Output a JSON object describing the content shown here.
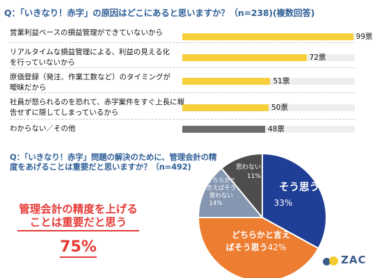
{
  "question1": "Q：「いきなり！赤字」の原因はどこにあると思いますか？（n=238)(複数回答)",
  "bar_rows": [
    {
      "label": "営業利益ベースの損益管理ができていないから",
      "value_text": "99票"
    },
    {
      "label": "リアルタイムな損益管理による、利益の見える化を行っていないから",
      "value_text": "72票"
    },
    {
      "label": "原価登録（発注、作業工数など）のタイミングが曖昧だから",
      "value_text": "51票"
    },
    {
      "label": "社員が怒られるのを恐れて、赤字案件をすぐ上長に報告せずに隠してしまっているから",
      "value_text": "50票"
    },
    {
      "label": "わからない／その他",
      "value_text": "48票"
    }
  ],
  "question2": "Q：「いきなり！赤字」問題の解決のために、管理会計の精度をあげることは重要だと思いますか？（n=492)",
  "callout": {
    "text": "管理会計の精度を上げることは重要だと思う",
    "percent": "75%"
  },
  "pie_labels": [
    {
      "name": "そう思う",
      "pct": "33%"
    },
    {
      "name": "どちらかと言えばそう思う",
      "pct": "42%"
    },
    {
      "name": "どちらかと言えばそう思わない",
      "pct": "14%"
    },
    {
      "name": "思わない",
      "pct": "11%"
    }
  ],
  "logo": "ZAC",
  "colors": {
    "question": "#2f5f97",
    "bar_yellow": "#f7cf3a",
    "bar_gray": "#6b6b6b",
    "accent_red": "#e53935",
    "pie_blue": "#1f3e96",
    "pie_orange": "#ed7d31",
    "pie_lightblue": "#8496b0",
    "pie_darkgray": "#4d4d4d",
    "logo_blue": "#3b5a88",
    "logo_yellow": "#f5c518"
  },
  "chart_data": [
    {
      "type": "bar",
      "title": "Q：「いきなり！赤字」の原因はどこにあると思いますか？（n=238)(複数回答)",
      "categories": [
        "営業利益ベースの損益管理ができていないから",
        "リアルタイムな損益管理による、利益の見える化を行っていないから",
        "原価登録（発注、作業工数など）のタイミングが曖昧だから",
        "社員が怒られるのを恐れて、赤字案件をすぐ上長に報告せずに隠してしまっているから",
        "わからない／その他"
      ],
      "values": [
        99,
        72,
        51,
        50,
        48
      ],
      "colors": [
        "#f7cf3a",
        "#f7cf3a",
        "#f7cf3a",
        "#f7cf3a",
        "#6b6b6b"
      ],
      "xlim": [
        0,
        100
      ],
      "orientation": "horizontal"
    },
    {
      "type": "pie",
      "title": "Q：「いきなり！赤字」問題の解決のために、管理会計の精度をあげることは重要だと思いますか？（n=492)",
      "labels": [
        "そう思う",
        "どちらかと言えばそう思う",
        "どちらかと言えばそう思わない",
        "思わない"
      ],
      "values": [
        33,
        42,
        14,
        11
      ],
      "colors": [
        "#1f3e96",
        "#ed7d31",
        "#8496b0",
        "#4d4d4d"
      ]
    }
  ]
}
